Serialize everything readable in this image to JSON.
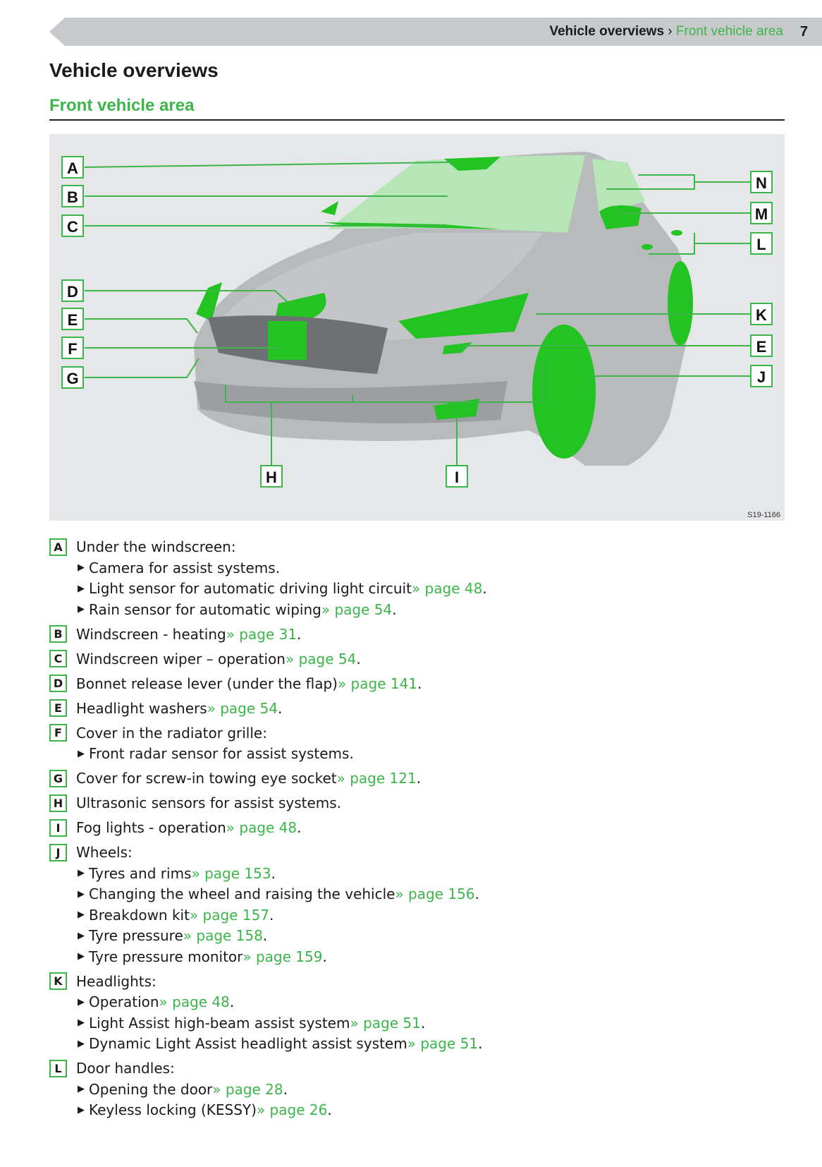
{
  "header": {
    "breadcrumb_section": "Vehicle overviews",
    "breadcrumb_sep": " › ",
    "breadcrumb_current": "Front vehicle area",
    "page_number": "7"
  },
  "title": "Vehicle overviews",
  "subtitle": "Front vehicle area",
  "figure": {
    "id": "S19-1166",
    "callouts_left": [
      "A",
      "B",
      "C",
      "D",
      "E",
      "F",
      "G"
    ],
    "callouts_right": [
      "N",
      "M",
      "L",
      "K",
      "E",
      "J"
    ],
    "callouts_bottom": [
      "H",
      "I"
    ],
    "highlight_color": "#22c322"
  },
  "colors": {
    "accent": "#3cb54a",
    "header_bar": "#c8c9cb"
  },
  "items": [
    {
      "letter": "A",
      "text": "Under the windscreen:",
      "subs": [
        {
          "text": "Camera for assist systems."
        },
        {
          "text": "Light sensor for automatic driving light circuit ",
          "link": "» page 48",
          "end": "."
        },
        {
          "text": "Rain sensor for automatic wiping ",
          "link": "» page 54",
          "end": "."
        }
      ]
    },
    {
      "letter": "B",
      "text": "Windscreen - heating ",
      "link": "» page 31",
      "end": "."
    },
    {
      "letter": "C",
      "text": "Windscreen wiper – operation ",
      "link": "» page 54",
      "end": "."
    },
    {
      "letter": "D",
      "text": "Bonnet release lever (under the flap) ",
      "link": "» page 141",
      "end": "."
    },
    {
      "letter": "E",
      "text": "Headlight washers ",
      "link": "» page 54",
      "end": "."
    },
    {
      "letter": "F",
      "text": "Cover in the radiator grille:",
      "subs": [
        {
          "text": "Front radar sensor for assist systems."
        }
      ]
    },
    {
      "letter": "G",
      "text": "Cover for screw-in towing eye socket ",
      "link": "» page 121",
      "end": "."
    },
    {
      "letter": "H",
      "text": "Ultrasonic sensors for assist systems."
    },
    {
      "letter": "I",
      "text": "Fog lights - operation ",
      "link": "» page 48",
      "end": "."
    },
    {
      "letter": "J",
      "text": "Wheels:",
      "subs": [
        {
          "text": "Tyres and rims ",
          "link": "» page 153",
          "end": "."
        },
        {
          "text": "Changing the wheel and raising the vehicle ",
          "link": "» page 156",
          "end": "."
        },
        {
          "text": "Breakdown kit ",
          "link": "» page 157",
          "end": "."
        },
        {
          "text": "Tyre pressure ",
          "link": "» page 158",
          "end": "."
        },
        {
          "text": "Tyre pressure monitor ",
          "link": "» page 159",
          "end": "."
        }
      ]
    },
    {
      "letter": "K",
      "text": "Headlights:",
      "subs": [
        {
          "text": "Operation ",
          "link": "» page 48",
          "end": "."
        },
        {
          "text": "Light Assist high-beam assist system ",
          "link": "» page 51",
          "end": "."
        },
        {
          "text": "Dynamic Light Assist headlight assist system ",
          "link": "» page 51",
          "end": "."
        }
      ]
    },
    {
      "letter": "L",
      "text": "Door handles:",
      "subs": [
        {
          "text": "Opening the door ",
          "link": "» page 28",
          "end": "."
        },
        {
          "text": "Keyless locking (KESSY)",
          "link": "» page 26",
          "end": "."
        }
      ]
    }
  ]
}
